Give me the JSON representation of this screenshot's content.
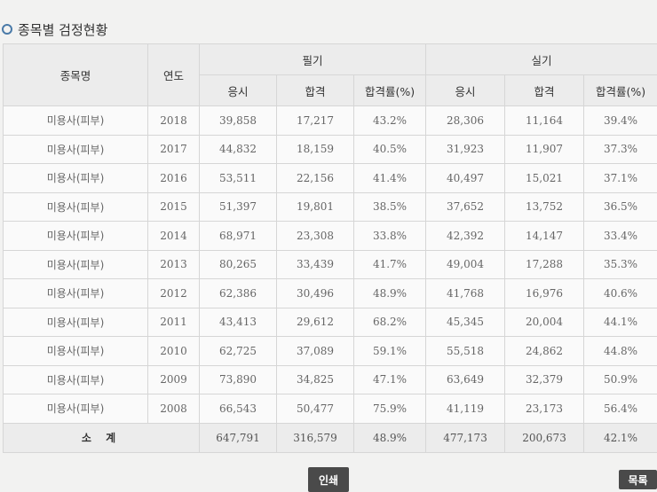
{
  "section_title": "종목별 검정현황",
  "headers": {
    "item": "종목명",
    "year": "연도",
    "written": "필기",
    "practical": "실기",
    "applicants": "응시",
    "passed": "합격",
    "pass_rate": "합격률(%)"
  },
  "rows": [
    {
      "item": "미용사(피부)",
      "year": "2018",
      "w_app": "39,858",
      "w_pass": "17,217",
      "w_rate": "43.2%",
      "p_app": "28,306",
      "p_pass": "11,164",
      "p_rate": "39.4%"
    },
    {
      "item": "미용사(피부)",
      "year": "2017",
      "w_app": "44,832",
      "w_pass": "18,159",
      "w_rate": "40.5%",
      "p_app": "31,923",
      "p_pass": "11,907",
      "p_rate": "37.3%"
    },
    {
      "item": "미용사(피부)",
      "year": "2016",
      "w_app": "53,511",
      "w_pass": "22,156",
      "w_rate": "41.4%",
      "p_app": "40,497",
      "p_pass": "15,021",
      "p_rate": "37.1%"
    },
    {
      "item": "미용사(피부)",
      "year": "2015",
      "w_app": "51,397",
      "w_pass": "19,801",
      "w_rate": "38.5%",
      "p_app": "37,652",
      "p_pass": "13,752",
      "p_rate": "36.5%"
    },
    {
      "item": "미용사(피부)",
      "year": "2014",
      "w_app": "68,971",
      "w_pass": "23,308",
      "w_rate": "33.8%",
      "p_app": "42,392",
      "p_pass": "14,147",
      "p_rate": "33.4%"
    },
    {
      "item": "미용사(피부)",
      "year": "2013",
      "w_app": "80,265",
      "w_pass": "33,439",
      "w_rate": "41.7%",
      "p_app": "49,004",
      "p_pass": "17,288",
      "p_rate": "35.3%"
    },
    {
      "item": "미용사(피부)",
      "year": "2012",
      "w_app": "62,386",
      "w_pass": "30,496",
      "w_rate": "48.9%",
      "p_app": "41,768",
      "p_pass": "16,976",
      "p_rate": "40.6%"
    },
    {
      "item": "미용사(피부)",
      "year": "2011",
      "w_app": "43,413",
      "w_pass": "29,612",
      "w_rate": "68.2%",
      "p_app": "45,345",
      "p_pass": "20,004",
      "p_rate": "44.1%"
    },
    {
      "item": "미용사(피부)",
      "year": "2010",
      "w_app": "62,725",
      "w_pass": "37,089",
      "w_rate": "59.1%",
      "p_app": "55,518",
      "p_pass": "24,862",
      "p_rate": "44.8%"
    },
    {
      "item": "미용사(피부)",
      "year": "2009",
      "w_app": "73,890",
      "w_pass": "34,825",
      "w_rate": "47.1%",
      "p_app": "63,649",
      "p_pass": "32,379",
      "p_rate": "50.9%"
    },
    {
      "item": "미용사(피부)",
      "year": "2008",
      "w_app": "66,543",
      "w_pass": "50,477",
      "w_rate": "75.9%",
      "p_app": "41,119",
      "p_pass": "23,173",
      "p_rate": "56.4%"
    }
  ],
  "total": {
    "label": "소 계",
    "w_app": "647,791",
    "w_pass": "316,579",
    "w_rate": "48.9%",
    "p_app": "477,173",
    "p_pass": "200,673",
    "p_rate": "42.1%"
  },
  "buttons": {
    "print": "인쇄",
    "list": "목록"
  }
}
